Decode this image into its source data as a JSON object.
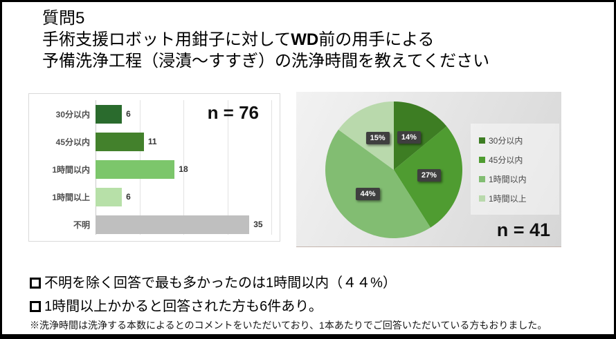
{
  "title": {
    "line1": "質問5",
    "line2_pre": "手術支援ロボット用鉗子に対して",
    "line2_bold": "WD",
    "line2_post": "前の用手による",
    "line3": "予備洗浄工程（浸漬～すすぎ）の洗浄時間を教えてください"
  },
  "chart_data": [
    {
      "type": "bar",
      "orientation": "horizontal",
      "n": "n = 76",
      "categories": [
        "30分以内",
        "45分以内",
        "1時間以内",
        "1時間以上",
        "不明"
      ],
      "values": [
        6,
        11,
        18,
        6,
        35
      ],
      "colors": [
        "#2a6b2d",
        "#43812c",
        "#7cc66b",
        "#b7e0a8",
        "#bfbfbf"
      ],
      "xlim": [
        0,
        40
      ],
      "gridline_step": 10,
      "grid": "vertical",
      "legend_position": "none"
    },
    {
      "type": "pie",
      "n": "n = 41",
      "labels": [
        "30分以内",
        "45分以内",
        "1時間以内",
        "1時間以上"
      ],
      "values": [
        14,
        27,
        44,
        15
      ],
      "pct_labels": [
        "14%",
        "27%",
        "44%",
        "15%"
      ],
      "colors": [
        "#3d7d23",
        "#4f9c31",
        "#82bd72",
        "#b9d9ac"
      ],
      "start_angle_deg": 0,
      "direction": "clockwise",
      "legend_position": "right"
    }
  ],
  "bullets": [
    "不明を除く回答で最も多かったのは1時間以内（４４%）",
    "1時間以上かかると回答された方も6件あり。"
  ],
  "note": "※洗浄時間は洗浄する本数によるとのコメントをいただいており、1本あたりでご回答いただいている方もおりました。"
}
